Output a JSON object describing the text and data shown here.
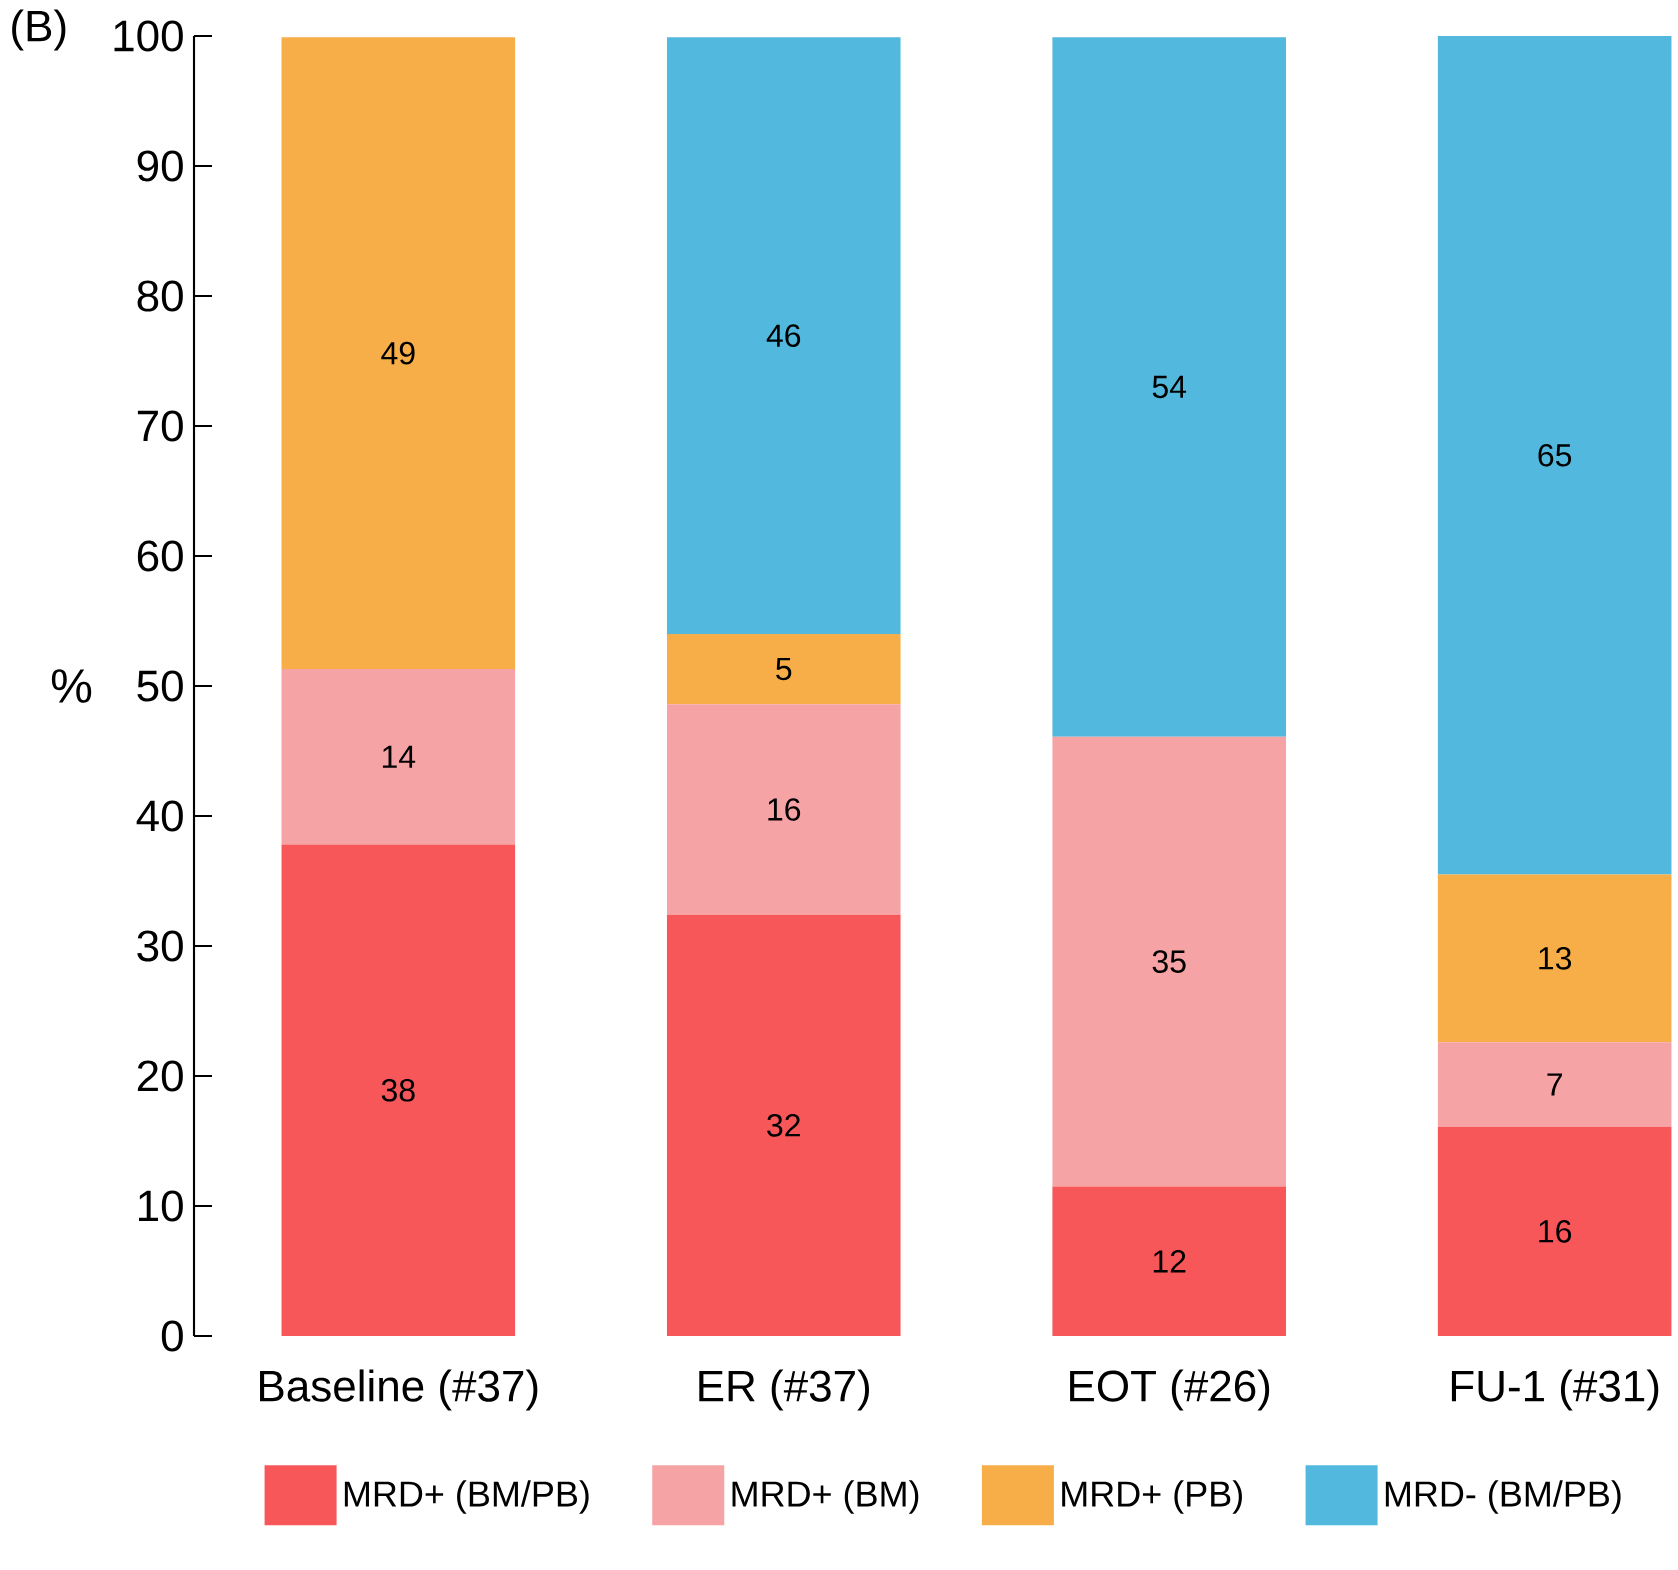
{
  "chart_data": {
    "type": "bar",
    "stacked": true,
    "categories": [
      "Baseline (#37)",
      "ER (#37)",
      "EOT (#26)",
      "FU-1 (#31)"
    ],
    "ylabel": "%",
    "ylim": [
      0,
      100
    ],
    "yticks": [
      0,
      10,
      20,
      30,
      40,
      50,
      60,
      70,
      80,
      90,
      100
    ],
    "legend": "bottom",
    "grid": false,
    "annotations": [
      "(B)"
    ],
    "series": [
      {
        "name": "MRD+ (BM/PB)",
        "color": "#f8575a",
        "values": [
          37.8,
          32.4,
          11.5,
          16.1
        ],
        "value_labels": [
          "38",
          "32",
          "12",
          "16"
        ]
      },
      {
        "name": "MRD+ (BM)",
        "color": "#f5a3a4",
        "values": [
          13.5,
          16.2,
          34.6,
          6.5
        ],
        "value_labels": [
          "14",
          "16",
          "35",
          "7"
        ]
      },
      {
        "name": "MRD+ (PB)",
        "color": "#f7ae48",
        "values": [
          48.6,
          5.4,
          null,
          12.9
        ],
        "value_labels": [
          "49",
          "5",
          null,
          "13"
        ]
      },
      {
        "name": "MRD- (BM/PB)",
        "color": "#52b8dd",
        "values": [
          null,
          45.9,
          53.8,
          64.5
        ],
        "value_labels": [
          null,
          "46",
          "54",
          "65"
        ]
      }
    ]
  }
}
